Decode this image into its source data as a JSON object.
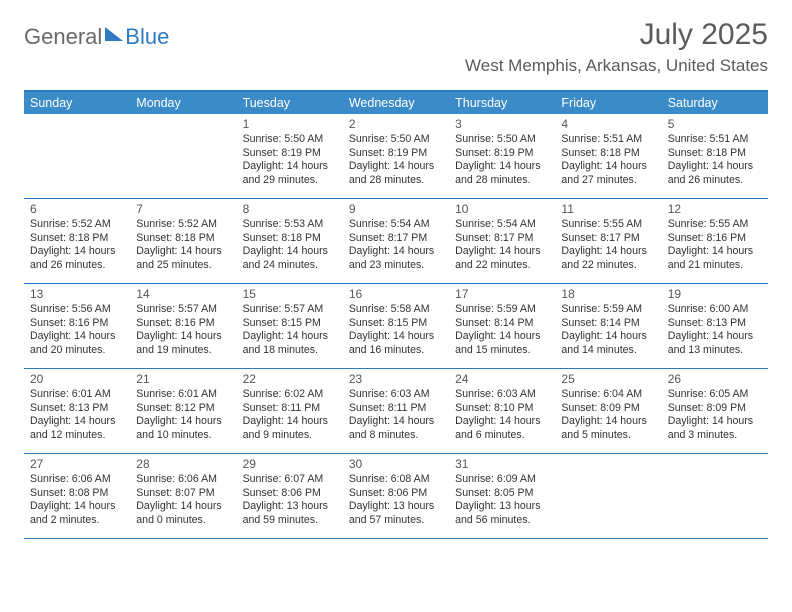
{
  "logo": {
    "general": "General",
    "blue": "Blue"
  },
  "title": "July 2025",
  "location": "West Memphis, Arkansas, United States",
  "weekdays": [
    "Sunday",
    "Monday",
    "Tuesday",
    "Wednesday",
    "Thursday",
    "Friday",
    "Saturday"
  ],
  "colors": {
    "brand_blue": "#3b8bc9",
    "rule_blue": "#2f7bbf",
    "text_gray": "#5b5b5b",
    "logo_gray": "#6a6a6a",
    "cell_text": "#333333",
    "background": "#ffffff"
  },
  "layout": {
    "columns": 7,
    "rows": 5,
    "first_weekday_index": 2,
    "days_in_month": 31,
    "header_fontsize_pt": 22,
    "location_fontsize_pt": 13,
    "weekday_fontsize_pt": 9,
    "cell_fontsize_pt": 8,
    "daynum_fontsize_pt": 9
  },
  "days": [
    {
      "n": 1,
      "sunrise": "5:50 AM",
      "sunset": "8:19 PM",
      "daylight": "14 hours and 29 minutes."
    },
    {
      "n": 2,
      "sunrise": "5:50 AM",
      "sunset": "8:19 PM",
      "daylight": "14 hours and 28 minutes."
    },
    {
      "n": 3,
      "sunrise": "5:50 AM",
      "sunset": "8:19 PM",
      "daylight": "14 hours and 28 minutes."
    },
    {
      "n": 4,
      "sunrise": "5:51 AM",
      "sunset": "8:18 PM",
      "daylight": "14 hours and 27 minutes."
    },
    {
      "n": 5,
      "sunrise": "5:51 AM",
      "sunset": "8:18 PM",
      "daylight": "14 hours and 26 minutes."
    },
    {
      "n": 6,
      "sunrise": "5:52 AM",
      "sunset": "8:18 PM",
      "daylight": "14 hours and 26 minutes."
    },
    {
      "n": 7,
      "sunrise": "5:52 AM",
      "sunset": "8:18 PM",
      "daylight": "14 hours and 25 minutes."
    },
    {
      "n": 8,
      "sunrise": "5:53 AM",
      "sunset": "8:18 PM",
      "daylight": "14 hours and 24 minutes."
    },
    {
      "n": 9,
      "sunrise": "5:54 AM",
      "sunset": "8:17 PM",
      "daylight": "14 hours and 23 minutes."
    },
    {
      "n": 10,
      "sunrise": "5:54 AM",
      "sunset": "8:17 PM",
      "daylight": "14 hours and 22 minutes."
    },
    {
      "n": 11,
      "sunrise": "5:55 AM",
      "sunset": "8:17 PM",
      "daylight": "14 hours and 22 minutes."
    },
    {
      "n": 12,
      "sunrise": "5:55 AM",
      "sunset": "8:16 PM",
      "daylight": "14 hours and 21 minutes."
    },
    {
      "n": 13,
      "sunrise": "5:56 AM",
      "sunset": "8:16 PM",
      "daylight": "14 hours and 20 minutes."
    },
    {
      "n": 14,
      "sunrise": "5:57 AM",
      "sunset": "8:16 PM",
      "daylight": "14 hours and 19 minutes."
    },
    {
      "n": 15,
      "sunrise": "5:57 AM",
      "sunset": "8:15 PM",
      "daylight": "14 hours and 18 minutes."
    },
    {
      "n": 16,
      "sunrise": "5:58 AM",
      "sunset": "8:15 PM",
      "daylight": "14 hours and 16 minutes."
    },
    {
      "n": 17,
      "sunrise": "5:59 AM",
      "sunset": "8:14 PM",
      "daylight": "14 hours and 15 minutes."
    },
    {
      "n": 18,
      "sunrise": "5:59 AM",
      "sunset": "8:14 PM",
      "daylight": "14 hours and 14 minutes."
    },
    {
      "n": 19,
      "sunrise": "6:00 AM",
      "sunset": "8:13 PM",
      "daylight": "14 hours and 13 minutes."
    },
    {
      "n": 20,
      "sunrise": "6:01 AM",
      "sunset": "8:13 PM",
      "daylight": "14 hours and 12 minutes."
    },
    {
      "n": 21,
      "sunrise": "6:01 AM",
      "sunset": "8:12 PM",
      "daylight": "14 hours and 10 minutes."
    },
    {
      "n": 22,
      "sunrise": "6:02 AM",
      "sunset": "8:11 PM",
      "daylight": "14 hours and 9 minutes."
    },
    {
      "n": 23,
      "sunrise": "6:03 AM",
      "sunset": "8:11 PM",
      "daylight": "14 hours and 8 minutes."
    },
    {
      "n": 24,
      "sunrise": "6:03 AM",
      "sunset": "8:10 PM",
      "daylight": "14 hours and 6 minutes."
    },
    {
      "n": 25,
      "sunrise": "6:04 AM",
      "sunset": "8:09 PM",
      "daylight": "14 hours and 5 minutes."
    },
    {
      "n": 26,
      "sunrise": "6:05 AM",
      "sunset": "8:09 PM",
      "daylight": "14 hours and 3 minutes."
    },
    {
      "n": 27,
      "sunrise": "6:06 AM",
      "sunset": "8:08 PM",
      "daylight": "14 hours and 2 minutes."
    },
    {
      "n": 28,
      "sunrise": "6:06 AM",
      "sunset": "8:07 PM",
      "daylight": "14 hours and 0 minutes."
    },
    {
      "n": 29,
      "sunrise": "6:07 AM",
      "sunset": "8:06 PM",
      "daylight": "13 hours and 59 minutes."
    },
    {
      "n": 30,
      "sunrise": "6:08 AM",
      "sunset": "8:06 PM",
      "daylight": "13 hours and 57 minutes."
    },
    {
      "n": 31,
      "sunrise": "6:09 AM",
      "sunset": "8:05 PM",
      "daylight": "13 hours and 56 minutes."
    }
  ],
  "labels": {
    "sunrise": "Sunrise:",
    "sunset": "Sunset:",
    "daylight": "Daylight:"
  }
}
